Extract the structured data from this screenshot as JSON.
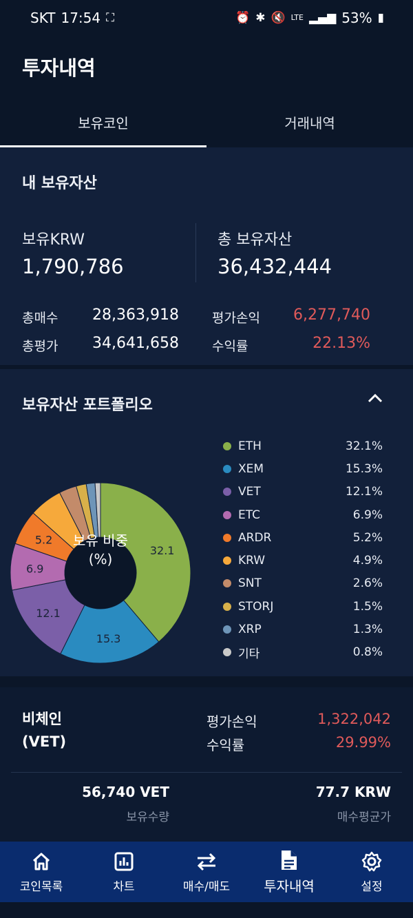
{
  "status": {
    "carrier": "SKT",
    "time": "17:54",
    "battery": "53%",
    "net": "LTE"
  },
  "page_title": "투자내역",
  "tabs": [
    {
      "label": "보유코인"
    },
    {
      "label": "거래내역"
    }
  ],
  "assets": {
    "title": "내 보유자산",
    "krw_label": "보유KRW",
    "krw_value": "1,790,786",
    "total_label": "총 보유자산",
    "total_value": "36,432,444",
    "buy_label": "총매수",
    "buy_value": "28,363,918",
    "pl_label": "평가손익",
    "pl_value": "6,277,740",
    "eval_label": "총평가",
    "eval_value": "34,641,658",
    "rate_label": "수익률",
    "rate_value": "22.13%"
  },
  "portfolio": {
    "title": "보유자산 포트폴리오",
    "center_label": "보유 비중",
    "center_unit": "(%)"
  },
  "chart_data": {
    "type": "pie",
    "categories": [
      "ETH",
      "XEM",
      "VET",
      "ETC",
      "ARDR",
      "KRW",
      "SNT",
      "STORJ",
      "XRP",
      "기타"
    ],
    "values": [
      32.1,
      15.3,
      12.1,
      6.9,
      5.2,
      4.9,
      2.6,
      1.5,
      1.3,
      0.8
    ],
    "value_labels": [
      "32.1%",
      "15.3%",
      "12.1%",
      "6.9%",
      "5.2%",
      "4.9%",
      "2.6%",
      "1.5%",
      "1.3%",
      "0.8%"
    ],
    "slice_labels": [
      "32.1",
      "15.3",
      "12.1",
      "6.9",
      "5.2",
      "",
      "",
      "",
      "",
      ""
    ],
    "colors": [
      "#8ab04a",
      "#2a8bc0",
      "#7b5fa8",
      "#b36bb0",
      "#f07a2a",
      "#f6a93b",
      "#c38b6a",
      "#d8b04a",
      "#6e95b8",
      "#c9c9c9"
    ],
    "donut": true,
    "legend": "right"
  },
  "holding": {
    "name": "비체인",
    "symbol": "(VET)",
    "pl_label": "평가손익",
    "pl_value": "1,322,042",
    "rate_label": "수익률",
    "rate_value": "29.99%",
    "qty_value": "56,740 VET",
    "qty_label": "보유수량",
    "avg_value": "77.7 KRW",
    "avg_label": "매수평균가"
  },
  "nav": [
    {
      "label": "코인목록",
      "icon": "home-icon"
    },
    {
      "label": "차트",
      "icon": "chart-icon"
    },
    {
      "label": "매수/매도",
      "icon": "swap-icon"
    },
    {
      "label": "투자내역",
      "icon": "document-icon"
    },
    {
      "label": "설정",
      "icon": "gear-icon"
    }
  ]
}
